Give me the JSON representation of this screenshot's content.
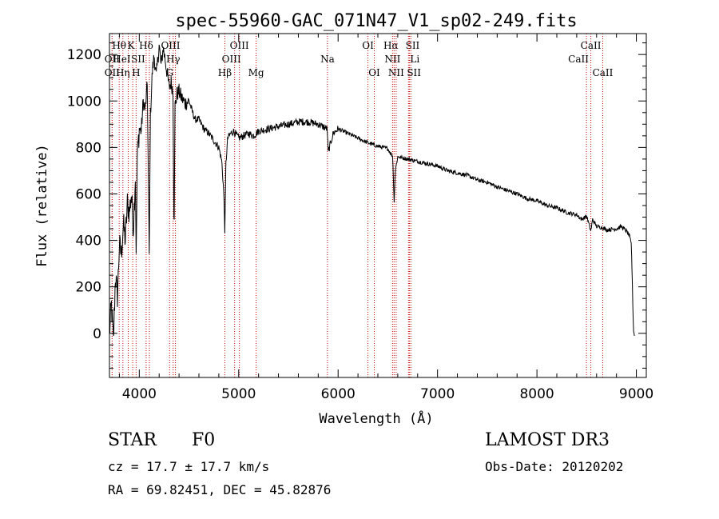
{
  "chart_data": {
    "type": "line",
    "title": "spec-55960-GAC_071N47_V1_sp02-249.fits",
    "xlabel": "Wavelength (Å)",
    "ylabel": "Flux (relative)",
    "xlim": [
      3700,
      9100
    ],
    "ylim": [
      -190,
      1290
    ],
    "xticks": [
      4000,
      5000,
      6000,
      7000,
      8000,
      9000
    ],
    "yticks": [
      0,
      200,
      400,
      600,
      800,
      1000,
      1200
    ],
    "grid": false,
    "line_color": "#000000",
    "marker_color": "#cc0000",
    "series": [
      {
        "name": "flux",
        "x": [
          3700,
          3720,
          3740,
          3760,
          3780,
          3800,
          3820,
          3840,
          3860,
          3880,
          3900,
          3920,
          3940,
          3960,
          3970,
          3980,
          4000,
          4020,
          4040,
          4060,
          4080,
          4101,
          4110,
          4130,
          4150,
          4170,
          4200,
          4220,
          4240,
          4260,
          4280,
          4300,
          4320,
          4340,
          4350,
          4360,
          4380,
          4400,
          4430,
          4460,
          4500,
          4530,
          4560,
          4600,
          4650,
          4700,
          4750,
          4800,
          4830,
          4850,
          4861,
          4870,
          4890,
          4920,
          4950,
          5000,
          5050,
          5100,
          5150,
          5200,
          5300,
          5400,
          5500,
          5600,
          5700,
          5800,
          5890,
          5900,
          5950,
          6000,
          6100,
          6200,
          6300,
          6400,
          6500,
          6550,
          6563,
          6575,
          6600,
          6700,
          6800,
          6900,
          7000,
          7100,
          7200,
          7300,
          7400,
          7500,
          7600,
          7700,
          7800,
          7900,
          8000,
          8100,
          8200,
          8300,
          8400,
          8450,
          8500,
          8542,
          8560,
          8600,
          8662,
          8700,
          8800,
          8850,
          8900,
          8930,
          8950,
          8960,
          8970,
          8980
        ],
        "y": [
          0,
          120,
          -40,
          250,
          160,
          380,
          340,
          470,
          400,
          560,
          520,
          600,
          450,
          680,
          300,
          760,
          880,
          870,
          1000,
          960,
          1070,
          300,
          920,
          1120,
          1200,
          1100,
          1240,
          1150,
          1230,
          1180,
          1120,
          1060,
          1080,
          1040,
          400,
          980,
          1030,
          1040,
          1010,
          990,
          1000,
          960,
          920,
          920,
          880,
          860,
          830,
          800,
          740,
          600,
          430,
          720,
          840,
          860,
          870,
          840,
          850,
          860,
          850,
          870,
          880,
          890,
          900,
          910,
          910,
          900,
          880,
          780,
          860,
          880,
          860,
          840,
          820,
          805,
          795,
          760,
          560,
          700,
          760,
          750,
          740,
          730,
          720,
          700,
          690,
          680,
          660,
          650,
          630,
          615,
          600,
          580,
          570,
          550,
          540,
          520,
          510,
          490,
          505,
          440,
          490,
          460,
          455,
          445,
          450,
          460,
          440,
          420,
          380,
          200,
          20,
          -10
        ]
      }
    ],
    "lines": [
      {
        "name": "Hθ",
        "x": 3798,
        "row": 1,
        "dx": 0
      },
      {
        "name": "OII",
        "x": 3727,
        "row": 2,
        "dx": 0
      },
      {
        "name": "OII",
        "x": 3727,
        "row": 3,
        "dx": 0
      },
      {
        "name": "Hη",
        "x": 3835,
        "row": 3,
        "dx": 0
      },
      {
        "name": "HeI",
        "x": 3889,
        "row": 2,
        "dx": -8
      },
      {
        "name": "K",
        "x": 3934,
        "row": 1,
        "dx": -2
      },
      {
        "name": "H",
        "x": 3968,
        "row": 3,
        "dx": 0
      },
      {
        "name": "SII",
        "x": 4069,
        "row": 2,
        "dx": -10
      },
      {
        "name": "Hδ",
        "x": 4102,
        "row": 1,
        "dx": -4
      },
      {
        "name": "G",
        "x": 4305,
        "row": 3,
        "dx": 0
      },
      {
        "name": "OIII",
        "x": 4363,
        "row": 1,
        "dx": -6
      },
      {
        "name": "Hγ",
        "x": 4341,
        "row": 2,
        "dx": 0
      },
      {
        "name": "Hβ",
        "x": 4861,
        "row": 3,
        "dx": 0
      },
      {
        "name": "OIII",
        "x": 4959,
        "row": 2,
        "dx": -4
      },
      {
        "name": "OIII",
        "x": 5007,
        "row": 1,
        "dx": 0
      },
      {
        "name": "Mg",
        "x": 5175,
        "row": 3,
        "dx": 0
      },
      {
        "name": "Na",
        "x": 5893,
        "row": 2,
        "dx": 0
      },
      {
        "name": "OI",
        "x": 6300,
        "row": 1,
        "dx": 0
      },
      {
        "name": "OI",
        "x": 6364,
        "row": 3,
        "dx": 0
      },
      {
        "name": "NII",
        "x": 6548,
        "row": 2,
        "dx": 0
      },
      {
        "name": "Hα",
        "x": 6563,
        "row": 1,
        "dx": -4
      },
      {
        "name": "NII",
        "x": 6584,
        "row": 3,
        "dx": 0
      },
      {
        "name": "SII",
        "x": 6717,
        "row": 1,
        "dx": 4
      },
      {
        "name": "Li",
        "x": 6708,
        "row": 2,
        "dx": 8
      },
      {
        "name": "SII",
        "x": 6731,
        "row": 3,
        "dx": 4
      },
      {
        "name": "CaII",
        "x": 8498,
        "row": 2,
        "dx": -10
      },
      {
        "name": "CaII",
        "x": 8542,
        "row": 1,
        "dx": 0
      },
      {
        "name": "CaII",
        "x": 8662,
        "row": 3,
        "dx": 0
      }
    ]
  },
  "info": {
    "class_label": "STAR",
    "subclass_label": "F0",
    "survey_label": "LAMOST DR3",
    "cz_text": "cz = 17.7 ± 17.7 km/s",
    "obs_date_text": "Obs-Date: 20120202",
    "coords_text": "RA =  69.82451, DEC =  45.82876"
  }
}
